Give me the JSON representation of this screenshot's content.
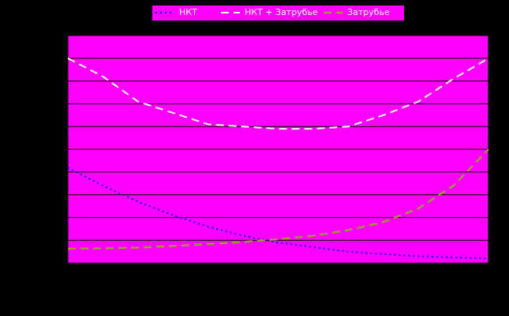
{
  "chart_data": {
    "type": "line",
    "x": [
      0,
      1,
      2,
      3,
      4,
      5,
      6,
      7,
      8,
      9,
      10,
      11,
      12
    ],
    "xlim": [
      0,
      12
    ],
    "ylim": [
      0,
      10
    ],
    "yticks": [
      0,
      1,
      2,
      3,
      4,
      5,
      6,
      7,
      8,
      9,
      10
    ],
    "grid": true,
    "legend": "top",
    "series": [
      {
        "name": "НКТ",
        "color": "#0000ff",
        "values": [
          4.2,
          3.4,
          2.7,
          2.1,
          1.6,
          1.2,
          0.9,
          0.7,
          0.5,
          0.4,
          0.3,
          0.25,
          0.2
        ]
      },
      {
        "name": "НКТ + Затрубье",
        "color": "#ffffff",
        "values": [
          9.0,
          8.2,
          7.1,
          6.6,
          6.1,
          6.0,
          5.9,
          5.9,
          6.0,
          6.5,
          7.1,
          8.1,
          9.0
        ]
      },
      {
        "name": "Затрубье",
        "color": "#999933",
        "values": [
          0.63,
          0.65,
          0.68,
          0.75,
          0.83,
          0.93,
          1.05,
          1.2,
          1.45,
          1.8,
          2.4,
          3.4,
          5.0
        ]
      }
    ]
  }
}
